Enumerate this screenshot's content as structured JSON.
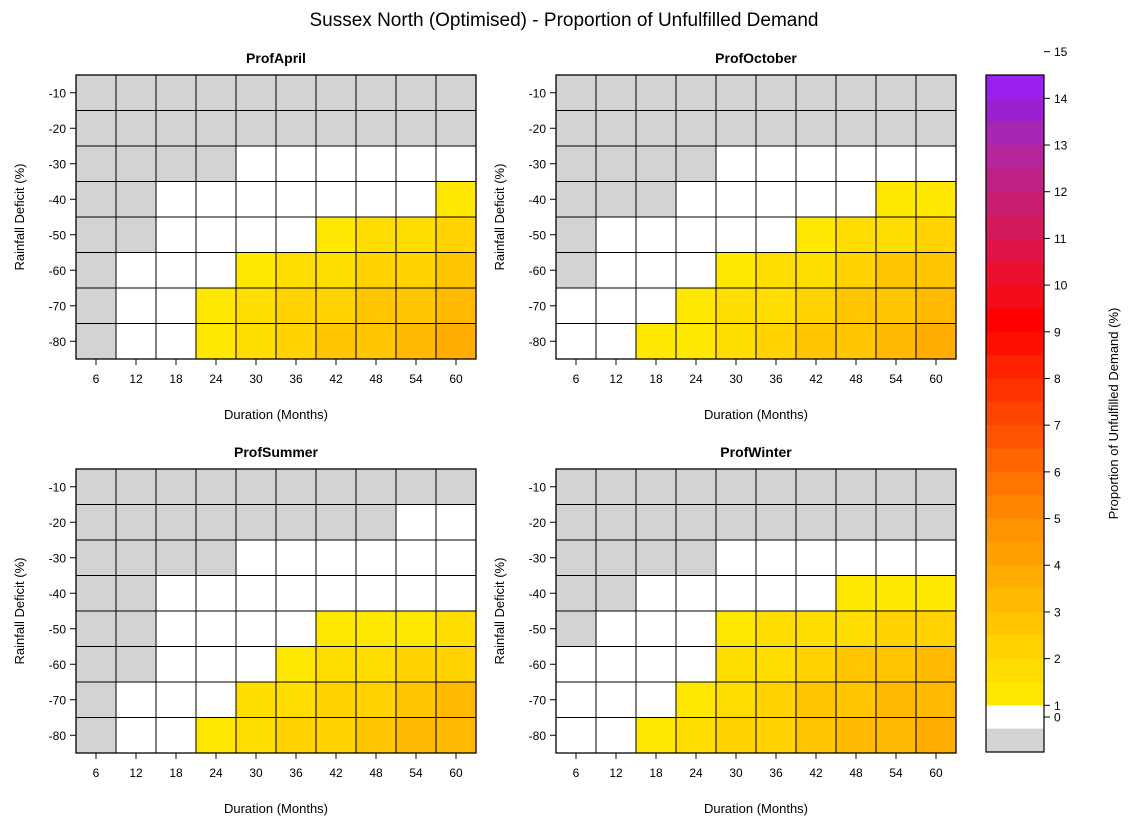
{
  "main_title": "Sussex North (Optimised) - Proportion of Unfulfilled Demand",
  "xlabel": "Duration (Months)",
  "ylabel": "Rainfall Deficit (%)",
  "x_ticks": [
    6,
    12,
    18,
    24,
    30,
    36,
    42,
    48,
    54,
    60
  ],
  "y_ticks": [
    -10,
    -20,
    -30,
    -40,
    -50,
    -60,
    -70,
    -80
  ],
  "colorbar": {
    "label": "Proportion of Unfulfilled Demand (%)",
    "ticks": [
      0,
      1,
      2,
      3,
      4,
      5,
      6,
      7,
      8,
      9,
      10,
      11,
      12,
      13,
      14,
      15
    ],
    "colors": [
      "#d3d3d3",
      "#ffffff",
      "#ffe800",
      "#ffdd00",
      "#ffd200",
      "#ffc600",
      "#ffba00",
      "#ffad00",
      "#ffa000",
      "#ff9400",
      "#ff8400",
      "#ff7500",
      "#ff6500",
      "#ff5500",
      "#ff4400",
      "#ff3300",
      "#ff2200",
      "#ff0d00",
      "#ff0000",
      "#f50c1a",
      "#ec1030",
      "#e01448",
      "#d21a5c",
      "#c81e70",
      "#be2284",
      "#b4269a",
      "#a826b2",
      "#9b20d0",
      "#9b20f0"
    ],
    "color_unit": 0.5
  },
  "chart_data": [
    {
      "type": "heatmap",
      "title": "ProfApril",
      "x": [
        6,
        12,
        18,
        24,
        30,
        36,
        42,
        48,
        54,
        60
      ],
      "y": [
        -10,
        -20,
        -30,
        -40,
        -50,
        -60,
        -70,
        -80
      ],
      "values": [
        [
          -1,
          -1,
          -1,
          -1,
          -1,
          -1,
          -1,
          -1,
          -1,
          -1
        ],
        [
          -1,
          -1,
          -1,
          -1,
          -1,
          -1,
          -1,
          -1,
          -1,
          -1
        ],
        [
          -1,
          -1,
          -1,
          -1,
          0,
          0,
          0,
          0,
          0,
          0
        ],
        [
          -1,
          -1,
          0,
          0,
          0,
          0,
          0,
          0,
          0,
          1.2
        ],
        [
          -1,
          -1,
          0,
          0,
          0,
          0,
          1.4,
          1.5,
          1.7,
          2.0
        ],
        [
          -1,
          0,
          0,
          0,
          1.4,
          1.6,
          1.9,
          2.1,
          2.4,
          2.7
        ],
        [
          -1,
          0,
          0,
          1.3,
          1.7,
          2.0,
          2.3,
          2.6,
          2.9,
          3.2
        ],
        [
          -1,
          0,
          0,
          1.4,
          1.8,
          2.2,
          2.5,
          2.9,
          3.3,
          3.9
        ]
      ]
    },
    {
      "type": "heatmap",
      "title": "ProfOctober",
      "x": [
        6,
        12,
        18,
        24,
        30,
        36,
        42,
        48,
        54,
        60
      ],
      "y": [
        -10,
        -20,
        -30,
        -40,
        -50,
        -60,
        -70,
        -80
      ],
      "values": [
        [
          -1,
          -1,
          -1,
          -1,
          -1,
          -1,
          -1,
          -1,
          -1,
          -1
        ],
        [
          -1,
          -1,
          -1,
          -1,
          -1,
          -1,
          -1,
          -1,
          -1,
          -1
        ],
        [
          -1,
          -1,
          -1,
          -1,
          0,
          0,
          0,
          0,
          0,
          0
        ],
        [
          -1,
          -1,
          -1,
          0,
          0,
          0,
          0,
          0,
          1.2,
          1.3
        ],
        [
          -1,
          0,
          0,
          0,
          0,
          0,
          1.4,
          1.5,
          1.8,
          2.1
        ],
        [
          -1,
          0,
          0,
          0,
          1.3,
          1.6,
          1.9,
          2.2,
          2.5,
          2.8
        ],
        [
          0,
          0,
          0,
          1.3,
          1.6,
          1.9,
          2.3,
          2.6,
          2.9,
          3.3
        ],
        [
          0,
          0,
          1.1,
          1.4,
          1.8,
          2.1,
          2.5,
          2.9,
          3.2,
          3.7
        ]
      ]
    },
    {
      "type": "heatmap",
      "title": "ProfSummer",
      "x": [
        6,
        12,
        18,
        24,
        30,
        36,
        42,
        48,
        54,
        60
      ],
      "y": [
        -10,
        -20,
        -30,
        -40,
        -50,
        -60,
        -70,
        -80
      ],
      "values": [
        [
          -1,
          -1,
          -1,
          -1,
          -1,
          -1,
          -1,
          -1,
          -1,
          -1
        ],
        [
          -1,
          -1,
          -1,
          -1,
          -1,
          -1,
          -1,
          -1,
          0,
          0
        ],
        [
          -1,
          -1,
          -1,
          -1,
          0,
          0,
          0,
          0,
          0,
          0
        ],
        [
          -1,
          -1,
          0,
          0,
          0,
          0,
          0,
          0,
          0,
          0
        ],
        [
          -1,
          -1,
          0,
          0,
          0,
          0,
          1.2,
          1.3,
          1.4,
          1.5
        ],
        [
          -1,
          -1,
          0,
          0,
          0,
          1.4,
          1.7,
          1.9,
          2.1,
          2.4
        ],
        [
          -1,
          0,
          0,
          0,
          1.5,
          1.8,
          2.1,
          2.4,
          2.7,
          3.0
        ],
        [
          -1,
          0,
          0,
          1.2,
          1.7,
          2.0,
          2.4,
          2.8,
          3.1,
          3.4
        ]
      ]
    },
    {
      "type": "heatmap",
      "title": "ProfWinter",
      "x": [
        6,
        12,
        18,
        24,
        30,
        36,
        42,
        48,
        54,
        60
      ],
      "y": [
        -10,
        -20,
        -30,
        -40,
        -50,
        -60,
        -70,
        -80
      ],
      "values": [
        [
          -1,
          -1,
          -1,
          -1,
          -1,
          -1,
          -1,
          -1,
          -1,
          -1
        ],
        [
          -1,
          -1,
          -1,
          -1,
          -1,
          -1,
          -1,
          -1,
          -1,
          -1
        ],
        [
          -1,
          -1,
          -1,
          -1,
          0,
          0,
          0,
          0,
          0,
          0
        ],
        [
          -1,
          -1,
          0,
          0,
          0,
          0,
          0,
          1.2,
          1.3,
          1.4
        ],
        [
          -1,
          0,
          0,
          0,
          1.3,
          1.5,
          1.7,
          1.9,
          2.1,
          2.4
        ],
        [
          0,
          0,
          0,
          0,
          1.6,
          1.9,
          2.2,
          2.5,
          2.8,
          3.1
        ],
        [
          0,
          0,
          0,
          1.4,
          1.8,
          2.1,
          2.5,
          2.8,
          3.1,
          3.4
        ],
        [
          0,
          0,
          1.2,
          1.6,
          2.0,
          2.4,
          2.8,
          3.1,
          3.4,
          3.9
        ]
      ]
    }
  ]
}
